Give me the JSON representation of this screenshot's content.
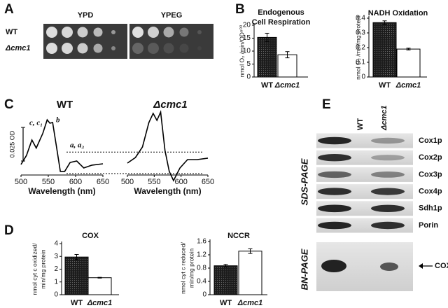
{
  "panel_labels": [
    "A",
    "B",
    "C",
    "D",
    "E"
  ],
  "spot_assay": {
    "media": [
      "YPD",
      "YPEG"
    ],
    "strains": [
      "WT",
      "Δcmc1"
    ]
  },
  "chart_data": [
    {
      "type": "bar",
      "title": [
        "Endogenous",
        "Cell Respiration"
      ],
      "y_label": "nmol O₂ /min/OD⁶⁰⁰",
      "categories": [
        "WT",
        "Δcmc1"
      ],
      "values": [
        15.3,
        8.6
      ],
      "errors": [
        1.6,
        1.2
      ],
      "colors": [
        "#1c1c1c",
        "#ffffff"
      ],
      "ylim": [
        0,
        20
      ],
      "yticks": [
        0,
        5,
        10,
        15,
        20
      ]
    },
    {
      "type": "bar",
      "title": [
        "NADH Oxidation"
      ],
      "y_label": "nmol O₂ /min/mg protein",
      "categories": [
        "WT",
        "Δcmc1"
      ],
      "values": [
        0.37,
        0.19
      ],
      "errors": [
        0.012,
        0.006
      ],
      "colors": [
        "#1c1c1c",
        "#ffffff"
      ],
      "ylim": [
        0,
        0.4
      ],
      "yticks": [
        0,
        0.1,
        0.2,
        0.3,
        0.4
      ]
    },
    {
      "type": "line",
      "title": "WT",
      "x_label": "Wavelength (nm)",
      "x": [
        500,
        510,
        520,
        528,
        540,
        548,
        553,
        558,
        565,
        572,
        580,
        590,
        602,
        615,
        630,
        650
      ],
      "values": [
        0.0068,
        0.0135,
        0.025,
        0.019,
        0.03,
        0.04,
        0.0375,
        0.038,
        0.02,
        0.0016,
        0.0016,
        0.0083,
        0.0094,
        0.0042,
        0.0063,
        0.0073
      ],
      "color": "#000000",
      "xlim": [
        500,
        650
      ],
      "xticks": [
        500,
        550,
        600,
        650
      ],
      "ylim": [
        -0.01,
        0.05
      ],
      "scale_bar": {
        "value": 0.025,
        "label": "0.025 OD"
      },
      "annotations": [
        "c, c₁",
        "b",
        "a, a₃"
      ],
      "reference_lines": [
        0.016,
        0
      ]
    },
    {
      "type": "line",
      "title": "Δcmc1",
      "x_label": "Wavelength (nm)",
      "x": [
        500,
        515,
        528,
        540,
        548,
        555,
        562,
        570,
        578,
        586,
        598,
        612,
        630,
        650
      ],
      "values": [
        0.0078,
        0.012,
        0.0198,
        0.038,
        0.0448,
        0.0396,
        0.0458,
        0.0172,
        0.0016,
        -0.0052,
        0.0042,
        0.0104,
        0.0104,
        0.0115
      ],
      "color": "#000000",
      "xlim": [
        500,
        650
      ],
      "xticks": [
        500,
        550,
        600,
        650
      ],
      "ylim": [
        -0.01,
        0.05
      ]
    },
    {
      "type": "bar",
      "title": [
        "COX"
      ],
      "y_label": [
        "nmol cyt c oxidized/",
        "min/mg protein"
      ],
      "categories": [
        "WT",
        "Δcmc1"
      ],
      "values": [
        2.95,
        1.33
      ],
      "errors": [
        0.2,
        0.03
      ],
      "colors": [
        "#1c1c1c",
        "#ffffff"
      ],
      "ylim": [
        0,
        4
      ],
      "yticks": [
        0,
        1,
        2,
        3,
        4
      ]
    },
    {
      "type": "bar",
      "title": [
        "NCCR"
      ],
      "y_label": [
        "nmol cyt c reduced/",
        "min/mg protein"
      ],
      "categories": [
        "WT",
        "Δcmc1"
      ],
      "values": [
        0.87,
        1.31
      ],
      "errors": [
        0.04,
        0.07
      ],
      "colors": [
        "#1c1c1c",
        "#ffffff"
      ],
      "ylim": [
        0,
        1.6
      ],
      "yticks": [
        0,
        0.4,
        0.8,
        1.2,
        1.6
      ]
    }
  ],
  "blots": {
    "lanes": [
      "WT",
      "Δcmc1"
    ],
    "sds_page": {
      "title": "SDS-PAGE",
      "bands": [
        "Cox1p",
        "Cox2p",
        "Cox3p",
        "Cox4p",
        "Sdh1p",
        "Porin"
      ]
    },
    "bn_page": {
      "title": "BN-PAGE",
      "band": "COX"
    }
  }
}
